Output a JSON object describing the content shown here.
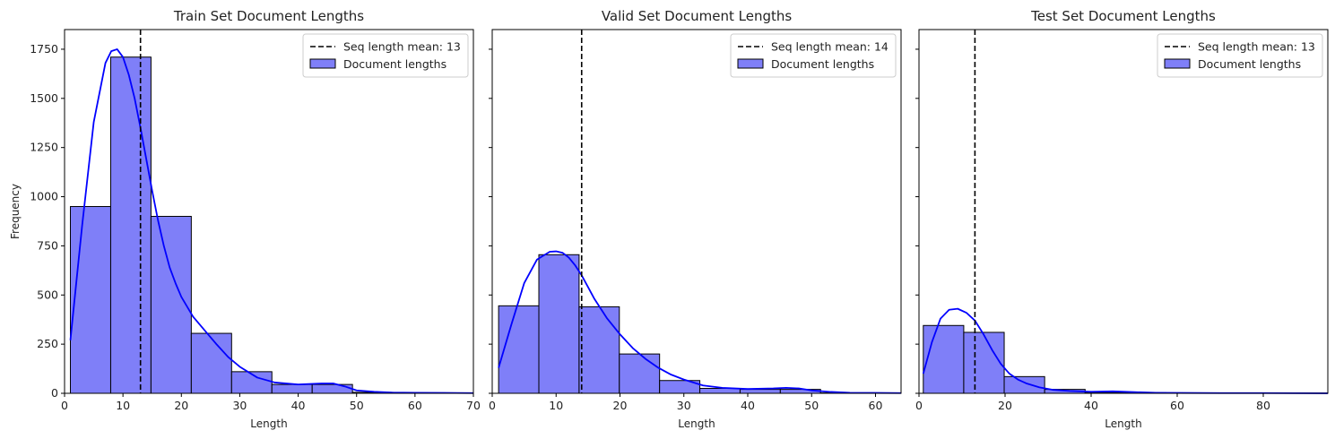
{
  "chart_data": [
    {
      "type": "bar",
      "title": "Train Set Document Lengths",
      "xlabel": "Length",
      "ylabel": "Frequency",
      "xlim": [
        0,
        70
      ],
      "ylim": [
        0,
        1850
      ],
      "xticks": [
        0,
        10,
        20,
        30,
        40,
        50,
        60,
        70
      ],
      "yticks": [
        0,
        250,
        500,
        750,
        1000,
        1250,
        1500,
        1750
      ],
      "bin_edges": [
        1,
        7.9,
        14.8,
        21.7,
        28.6,
        35.5,
        42.4,
        49.3,
        56.2,
        63.1,
        70
      ],
      "values": [
        950,
        1710,
        900,
        305,
        110,
        45,
        45,
        5,
        2,
        2
      ],
      "mean_line": {
        "x": 13,
        "label": "Seq length mean: 13"
      },
      "kde": {
        "label": "KDE",
        "x": [
          1,
          3,
          5,
          7,
          8,
          9,
          10,
          11,
          12,
          13,
          14,
          15,
          16,
          17,
          18,
          19,
          20,
          22,
          24,
          26,
          28,
          30,
          33,
          36,
          40,
          44,
          46,
          48,
          50,
          53,
          56,
          60,
          65,
          70
        ],
        "y": [
          270,
          850,
          1380,
          1680,
          1740,
          1750,
          1710,
          1620,
          1500,
          1350,
          1190,
          1030,
          880,
          750,
          640,
          560,
          490,
          390,
          320,
          250,
          185,
          135,
          80,
          55,
          45,
          50,
          50,
          35,
          15,
          8,
          4,
          3,
          2,
          1
        ]
      },
      "legend": [
        "Seq length mean: 13",
        "Document lengths"
      ],
      "legend_position": "top-right"
    },
    {
      "type": "bar",
      "title": "Valid Set Document Lengths",
      "xlabel": "Length",
      "ylabel": "",
      "xlim": [
        0,
        64
      ],
      "ylim": [
        0,
        1850
      ],
      "xticks": [
        0,
        10,
        20,
        30,
        40,
        50,
        60
      ],
      "yticks": [
        0,
        250,
        500,
        750,
        1000,
        1250,
        1500,
        1750
      ],
      "bin_edges": [
        1,
        7.3,
        13.6,
        19.9,
        26.2,
        32.5,
        38.8,
        45.1,
        51.4,
        57.7,
        64
      ],
      "values": [
        445,
        705,
        440,
        200,
        65,
        25,
        20,
        20,
        2,
        2
      ],
      "mean_line": {
        "x": 14,
        "label": "Seq length mean: 14"
      },
      "kde": {
        "label": "KDE",
        "x": [
          1,
          3,
          5,
          7,
          9,
          10,
          11,
          12,
          13,
          14,
          15,
          16,
          18,
          20,
          22,
          24,
          26,
          28,
          30,
          33,
          36,
          40,
          44,
          46,
          48,
          50,
          53,
          56,
          60,
          64
        ],
        "y": [
          130,
          350,
          560,
          680,
          720,
          722,
          715,
          690,
          650,
          600,
          540,
          480,
          380,
          300,
          230,
          175,
          130,
          95,
          70,
          40,
          28,
          22,
          25,
          28,
          25,
          15,
          7,
          3,
          2,
          1
        ]
      },
      "legend": [
        "Seq length mean: 14",
        "Document lengths"
      ],
      "legend_position": "top-right"
    },
    {
      "type": "bar",
      "title": "Test Set Document Lengths",
      "xlabel": "Length",
      "ylabel": "",
      "xlim": [
        0,
        95
      ],
      "ylim": [
        0,
        1850
      ],
      "xticks": [
        0,
        20,
        40,
        60,
        80
      ],
      "yticks": [
        0,
        250,
        500,
        750,
        1000,
        1250,
        1500,
        1750
      ],
      "bin_edges": [
        1,
        10.4,
        19.8,
        29.2,
        38.6,
        48,
        57.4,
        66.8,
        76.2,
        85.6,
        95
      ],
      "values": [
        345,
        310,
        85,
        20,
        5,
        3,
        2,
        1,
        1,
        1
      ],
      "mean_line": {
        "x": 13,
        "label": "Seq length mean: 13"
      },
      "kde": {
        "label": "KDE",
        "x": [
          1,
          3,
          5,
          7,
          9,
          11,
          13,
          15,
          17,
          19,
          21,
          23,
          25,
          28,
          31,
          35,
          40,
          45,
          50,
          55,
          60,
          70,
          80,
          95
        ],
        "y": [
          100,
          260,
          380,
          425,
          430,
          410,
          370,
          300,
          220,
          150,
          100,
          70,
          50,
          30,
          18,
          12,
          8,
          10,
          6,
          3,
          2,
          1,
          1,
          0
        ]
      },
      "legend": [
        "Seq length mean: 13",
        "Document lengths"
      ],
      "legend_position": "top-right"
    }
  ],
  "colors": {
    "bar_fill": "#7f7ff8",
    "bar_edge": "#000000",
    "kde_line": "#0000ff",
    "mean_line": "#000000"
  }
}
